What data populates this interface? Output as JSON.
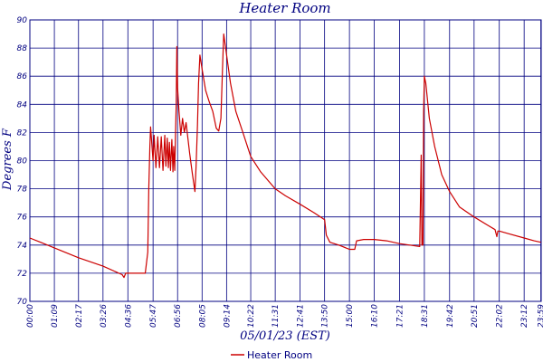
{
  "chart_data": {
    "type": "line",
    "title": "Heater Room",
    "xlabel": "05/01/23 (EST)",
    "ylabel": "Degrees F",
    "ylim": [
      70,
      90
    ],
    "yticks": [
      "70",
      "72",
      "74",
      "76",
      "78",
      "80",
      "82",
      "84",
      "86",
      "88",
      "90"
    ],
    "xticks": [
      "00:00",
      "01:09",
      "02:17",
      "03:26",
      "04:36",
      "05:47",
      "06:56",
      "08:05",
      "09:14",
      "10:22",
      "11:31",
      "12:41",
      "13:50",
      "15:00",
      "16:10",
      "17:21",
      "18:31",
      "19:42",
      "20:51",
      "22:02",
      "23:12",
      "23:59"
    ],
    "grid": true,
    "legend_position": "bottom-center",
    "colors": {
      "series": "#cc0000",
      "grid": "#000080",
      "text": "#000080"
    },
    "series": [
      {
        "name": "Heater Room",
        "points": [
          [
            "00:00",
            74.5
          ],
          [
            "00:30",
            74.2
          ],
          [
            "01:09",
            73.8
          ],
          [
            "02:17",
            73.1
          ],
          [
            "03:26",
            72.5
          ],
          [
            "04:20",
            71.9
          ],
          [
            "04:25",
            71.7
          ],
          [
            "04:30",
            72.0
          ],
          [
            "05:25",
            72.0
          ],
          [
            "05:32",
            73.5
          ],
          [
            "05:35",
            78.0
          ],
          [
            "05:38",
            81.0
          ],
          [
            "05:40",
            82.4
          ],
          [
            "05:47",
            80.0
          ],
          [
            "05:50",
            81.8
          ],
          [
            "05:55",
            79.5
          ],
          [
            "06:00",
            81.7
          ],
          [
            "06:05",
            79.5
          ],
          [
            "06:10",
            81.7
          ],
          [
            "06:15",
            79.3
          ],
          [
            "06:20",
            81.8
          ],
          [
            "06:23",
            79.6
          ],
          [
            "06:27",
            81.6
          ],
          [
            "06:30",
            79.5
          ],
          [
            "06:33",
            81.3
          ],
          [
            "06:36",
            79.3
          ],
          [
            "06:40",
            81.5
          ],
          [
            "06:43",
            79.2
          ],
          [
            "06:45",
            81.0
          ],
          [
            "06:48",
            79.3
          ],
          [
            "06:50",
            81.8
          ],
          [
            "06:52",
            84.0
          ],
          [
            "06:54",
            88.1
          ],
          [
            "06:56",
            85.2
          ],
          [
            "07:00",
            83.5
          ],
          [
            "07:05",
            81.8
          ],
          [
            "07:10",
            83.0
          ],
          [
            "07:15",
            82.0
          ],
          [
            "07:20",
            82.7
          ],
          [
            "07:30",
            80.5
          ],
          [
            "07:38",
            79.0
          ],
          [
            "07:45",
            77.8
          ],
          [
            "07:48",
            79.5
          ],
          [
            "07:52",
            82.5
          ],
          [
            "07:55",
            85.5
          ],
          [
            "07:59",
            87.5
          ],
          [
            "08:05",
            86.5
          ],
          [
            "08:15",
            85.0
          ],
          [
            "08:25",
            84.2
          ],
          [
            "08:35",
            83.5
          ],
          [
            "08:45",
            82.3
          ],
          [
            "08:52",
            82.1
          ],
          [
            "08:58",
            83.0
          ],
          [
            "09:03",
            87.0
          ],
          [
            "09:06",
            89.0
          ],
          [
            "09:14",
            87.5
          ],
          [
            "09:25",
            85.5
          ],
          [
            "09:40",
            83.5
          ],
          [
            "10:00",
            82.0
          ],
          [
            "10:22",
            80.3
          ],
          [
            "10:50",
            79.2
          ],
          [
            "11:31",
            78.0
          ],
          [
            "12:00",
            77.5
          ],
          [
            "12:41",
            76.9
          ],
          [
            "13:20",
            76.3
          ],
          [
            "13:50",
            75.8
          ],
          [
            "13:55",
            74.7
          ],
          [
            "14:05",
            74.2
          ],
          [
            "14:30",
            74.0
          ],
          [
            "14:50",
            73.8
          ],
          [
            "15:00",
            73.7
          ],
          [
            "15:15",
            73.7
          ],
          [
            "15:20",
            74.3
          ],
          [
            "15:40",
            74.4
          ],
          [
            "16:10",
            74.4
          ],
          [
            "16:45",
            74.3
          ],
          [
            "17:21",
            74.1
          ],
          [
            "17:50",
            74.0
          ],
          [
            "18:18",
            73.9
          ],
          [
            "18:22",
            80.4
          ],
          [
            "18:24",
            74.0
          ],
          [
            "18:27",
            74.0
          ],
          [
            "18:29",
            83.5
          ],
          [
            "18:31",
            86.0
          ],
          [
            "18:35",
            85.5
          ],
          [
            "18:45",
            83.0
          ],
          [
            "19:00",
            81.0
          ],
          [
            "19:20",
            79.0
          ],
          [
            "19:42",
            77.8
          ],
          [
            "20:10",
            76.7
          ],
          [
            "20:51",
            76.0
          ],
          [
            "21:30",
            75.4
          ],
          [
            "21:50",
            75.1
          ],
          [
            "21:55",
            74.6
          ],
          [
            "21:58",
            75.0
          ],
          [
            "22:02",
            75.0
          ],
          [
            "22:30",
            74.8
          ],
          [
            "23:12",
            74.5
          ],
          [
            "23:40",
            74.3
          ],
          [
            "23:59",
            74.2
          ]
        ]
      }
    ]
  }
}
